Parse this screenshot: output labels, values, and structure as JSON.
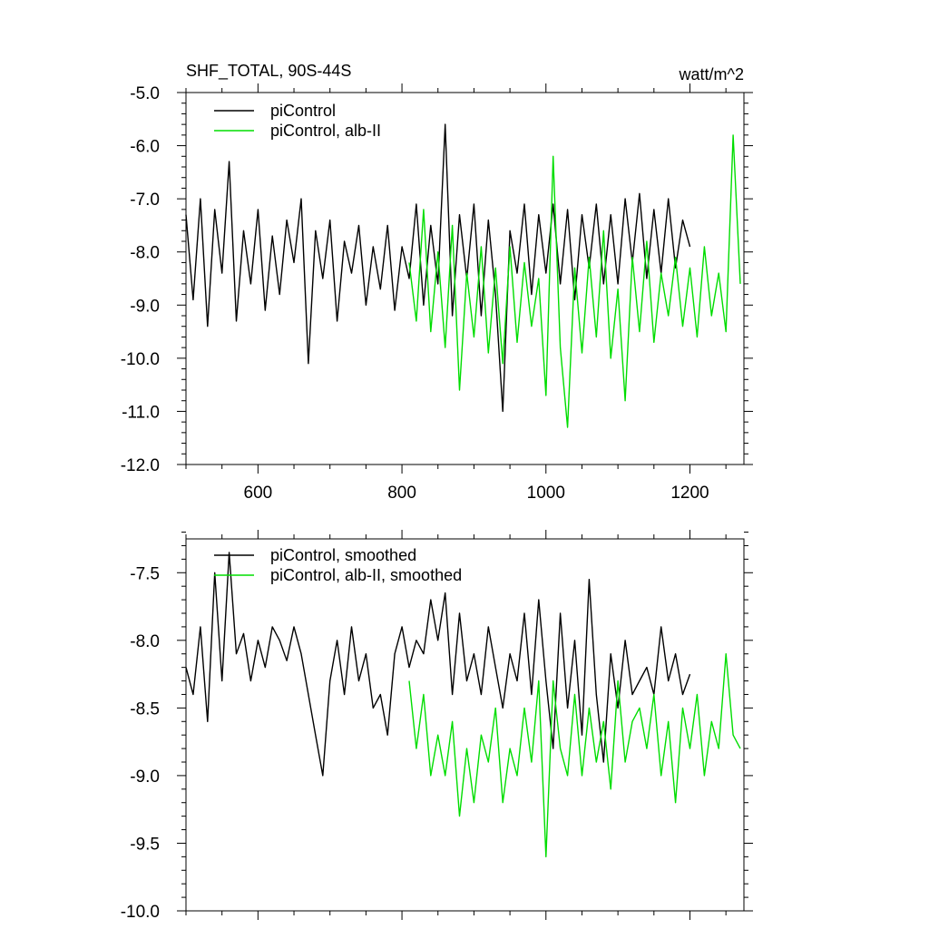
{
  "chart_data": [
    {
      "type": "line",
      "title": "SHF_TOTAL, 90S-44S",
      "units": "watt/m^2",
      "xlabel": "",
      "ylabel": "",
      "xlim": [
        500,
        1275
      ],
      "ylim": [
        -12.0,
        -5.0
      ],
      "x_ticks": [
        600,
        800,
        1000,
        1200
      ],
      "x_tick_labels": [
        "600",
        "800",
        "1000",
        "1200"
      ],
      "y_ticks": [
        -5.0,
        -6.0,
        -7.0,
        -8.0,
        -9.0,
        -10.0,
        -11.0,
        -12.0
      ],
      "y_tick_labels": [
        "-5.0",
        "-6.0",
        "-7.0",
        "-8.0",
        "-9.0",
        "-10.0",
        "-11.0",
        "-12.0"
      ],
      "grid": false,
      "legend_position": "top-left",
      "series": [
        {
          "name": "piControl",
          "color": "#000000",
          "x": [
            500,
            510,
            520,
            530,
            540,
            550,
            560,
            570,
            580,
            590,
            600,
            610,
            620,
            630,
            640,
            650,
            660,
            670,
            680,
            690,
            700,
            710,
            720,
            730,
            740,
            750,
            760,
            770,
            780,
            790,
            800,
            810,
            820,
            830,
            840,
            850,
            860,
            870,
            880,
            890,
            900,
            910,
            920,
            930,
            940,
            950,
            960,
            970,
            980,
            990,
            1000,
            1010,
            1020,
            1030,
            1040,
            1050,
            1060,
            1070,
            1080,
            1090,
            1100,
            1110,
            1120,
            1130,
            1140,
            1150,
            1160,
            1170,
            1180,
            1190,
            1200
          ],
          "y": [
            -7.3,
            -8.9,
            -7.0,
            -9.4,
            -7.2,
            -8.4,
            -6.3,
            -9.3,
            -7.6,
            -8.6,
            -7.2,
            -9.1,
            -7.7,
            -8.8,
            -7.4,
            -8.2,
            -7.0,
            -10.1,
            -7.6,
            -8.5,
            -7.4,
            -9.3,
            -7.8,
            -8.4,
            -7.5,
            -9.0,
            -7.9,
            -8.7,
            -7.5,
            -9.1,
            -7.9,
            -8.5,
            -7.1,
            -9.0,
            -7.5,
            -8.6,
            -5.6,
            -9.2,
            -7.3,
            -8.5,
            -7.1,
            -9.2,
            -7.4,
            -8.8,
            -11.0,
            -7.6,
            -8.4,
            -7.1,
            -8.8,
            -7.3,
            -8.4,
            -7.1,
            -8.6,
            -7.2,
            -8.9,
            -7.3,
            -8.3,
            -7.1,
            -8.6,
            -7.3,
            -8.6,
            -7.0,
            -8.2,
            -6.9,
            -8.5,
            -7.2,
            -8.4,
            -7.0,
            -8.3,
            -7.4,
            -7.9
          ]
        },
        {
          "name": "piControl, alb-II",
          "color": "#00dd00",
          "x": [
            810,
            820,
            830,
            840,
            850,
            860,
            870,
            880,
            890,
            900,
            910,
            920,
            930,
            940,
            950,
            960,
            970,
            980,
            990,
            1000,
            1010,
            1020,
            1030,
            1040,
            1050,
            1060,
            1070,
            1080,
            1090,
            1100,
            1110,
            1120,
            1130,
            1140,
            1150,
            1160,
            1170,
            1180,
            1190,
            1200,
            1210,
            1220,
            1230,
            1240,
            1250,
            1260,
            1270
          ],
          "y": [
            -8.2,
            -9.3,
            -7.2,
            -9.5,
            -8.0,
            -9.8,
            -7.5,
            -10.6,
            -8.4,
            -9.6,
            -7.9,
            -9.9,
            -8.3,
            -10.1,
            -7.9,
            -9.7,
            -8.2,
            -9.4,
            -8.5,
            -10.7,
            -6.2,
            -9.8,
            -11.3,
            -8.3,
            -9.9,
            -8.1,
            -9.6,
            -7.6,
            -10.0,
            -8.7,
            -10.8,
            -8.1,
            -9.5,
            -7.8,
            -9.7,
            -8.4,
            -9.2,
            -8.1,
            -9.4,
            -8.3,
            -9.6,
            -7.9,
            -9.2,
            -8.4,
            -9.5,
            -5.8,
            -8.6
          ]
        }
      ]
    },
    {
      "type": "line",
      "title": "",
      "xlabel": "",
      "ylabel": "",
      "xlim": [
        500,
        1275
      ],
      "ylim": [
        -10.0,
        -7.25
      ],
      "y_ticks": [
        -7.5,
        -8.0,
        -8.5,
        -9.0,
        -9.5,
        -10.0
      ],
      "y_tick_labels": [
        "-7.5",
        "-8.0",
        "-8.5",
        "-9.0",
        "-9.5",
        "-10.0"
      ],
      "grid": false,
      "legend_position": "top-left",
      "series": [
        {
          "name": "piControl, smoothed",
          "color": "#000000",
          "x": [
            500,
            510,
            520,
            530,
            540,
            550,
            560,
            570,
            580,
            590,
            600,
            610,
            620,
            630,
            640,
            650,
            660,
            670,
            680,
            690,
            700,
            710,
            720,
            730,
            740,
            750,
            760,
            770,
            780,
            790,
            800,
            810,
            820,
            830,
            840,
            850,
            860,
            870,
            880,
            890,
            900,
            910,
            920,
            930,
            940,
            950,
            960,
            970,
            980,
            990,
            1000,
            1010,
            1020,
            1030,
            1040,
            1050,
            1060,
            1070,
            1080,
            1090,
            1100,
            1110,
            1120,
            1130,
            1140,
            1150,
            1160,
            1170,
            1180,
            1190,
            1200
          ],
          "y": [
            -8.2,
            -8.4,
            -7.9,
            -8.6,
            -7.5,
            -8.3,
            -7.35,
            -8.1,
            -7.95,
            -8.3,
            -8.0,
            -8.2,
            -7.9,
            -8.0,
            -8.15,
            -7.9,
            -8.1,
            -8.4,
            -8.7,
            -9.0,
            -8.3,
            -8.0,
            -8.4,
            -7.9,
            -8.3,
            -8.1,
            -8.5,
            -8.4,
            -8.7,
            -8.1,
            -7.9,
            -8.2,
            -8.0,
            -8.1,
            -7.7,
            -8.0,
            -7.65,
            -8.4,
            -7.8,
            -8.3,
            -8.1,
            -8.4,
            -7.9,
            -8.2,
            -8.5,
            -8.1,
            -8.3,
            -7.8,
            -8.4,
            -7.7,
            -8.3,
            -8.8,
            -7.8,
            -8.5,
            -8.0,
            -8.7,
            -7.55,
            -8.4,
            -8.9,
            -8.1,
            -8.5,
            -8.0,
            -8.4,
            -8.3,
            -8.2,
            -8.4,
            -7.9,
            -8.3,
            -8.1,
            -8.4,
            -8.25
          ]
        },
        {
          "name": "piControl, alb-II, smoothed",
          "color": "#00dd00",
          "x": [
            810,
            820,
            830,
            840,
            850,
            860,
            870,
            880,
            890,
            900,
            910,
            920,
            930,
            940,
            950,
            960,
            970,
            980,
            990,
            1000,
            1010,
            1020,
            1030,
            1040,
            1050,
            1060,
            1070,
            1080,
            1090,
            1100,
            1110,
            1120,
            1130,
            1140,
            1150,
            1160,
            1170,
            1180,
            1190,
            1200,
            1210,
            1220,
            1230,
            1240,
            1250,
            1260,
            1270
          ],
          "y": [
            -8.3,
            -8.8,
            -8.4,
            -9.0,
            -8.7,
            -9.0,
            -8.6,
            -9.3,
            -8.8,
            -9.2,
            -8.7,
            -8.9,
            -8.5,
            -9.2,
            -8.8,
            -9.0,
            -8.5,
            -8.9,
            -8.3,
            -9.6,
            -8.3,
            -8.8,
            -9.0,
            -8.4,
            -9.0,
            -8.5,
            -8.9,
            -8.6,
            -9.1,
            -8.3,
            -8.9,
            -8.6,
            -8.5,
            -8.8,
            -8.4,
            -9.0,
            -8.6,
            -9.2,
            -8.5,
            -8.8,
            -8.4,
            -9.0,
            -8.6,
            -8.8,
            -8.1,
            -8.7,
            -8.8
          ]
        }
      ]
    }
  ]
}
